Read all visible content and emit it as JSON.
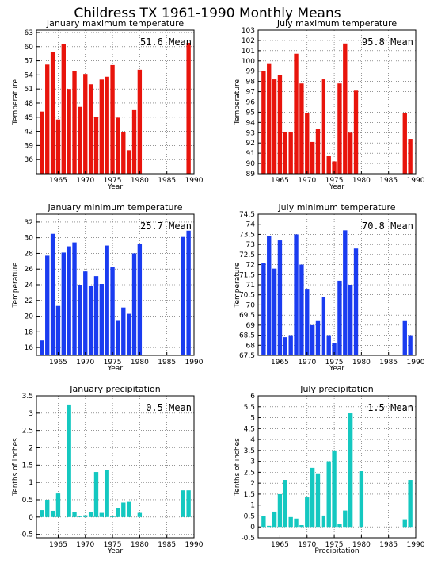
{
  "figure_title": "Childress TX  1961-1990 Monthly Means",
  "chart_data": [
    {
      "type": "bar",
      "title": "January maximum temperature",
      "xlabel": "Year",
      "ylabel": "Temperature",
      "mean_label": "51.6 Mean",
      "color": "#e8140c",
      "xlim": [
        1961,
        1990
      ],
      "ylim": [
        33,
        63.5
      ],
      "yticks": [
        36,
        39,
        42,
        45,
        48,
        51,
        54,
        57,
        60,
        63
      ],
      "xticks": [
        1965,
        1970,
        1975,
        1980,
        1985,
        1990
      ],
      "x": [
        1962,
        1963,
        1964,
        1965,
        1966,
        1967,
        1968,
        1969,
        1970,
        1971,
        1972,
        1973,
        1974,
        1975,
        1976,
        1977,
        1978,
        1979,
        1980,
        1989
      ],
      "values": [
        46.2,
        56.2,
        58.9,
        44.5,
        60.5,
        51.0,
        54.8,
        47.2,
        54.2,
        52.0,
        45.0,
        53.0,
        53.6,
        56.1,
        44.9,
        41.8,
        38.0,
        46.5,
        55.1,
        60.8
      ]
    },
    {
      "type": "bar",
      "title": "July maximum temperature",
      "xlabel": "Year",
      "ylabel": "Temperature",
      "mean_label": "95.8 Mean",
      "color": "#e8140c",
      "xlim": [
        1961,
        1990
      ],
      "ylim": [
        89,
        103
      ],
      "yticks": [
        89,
        90,
        91,
        92,
        93,
        94,
        95,
        96,
        97,
        98,
        99,
        100,
        101,
        102,
        103
      ],
      "xticks": [
        1965,
        1970,
        1975,
        1980,
        1985,
        1990
      ],
      "x": [
        1962,
        1963,
        1964,
        1965,
        1966,
        1967,
        1968,
        1969,
        1970,
        1971,
        1972,
        1973,
        1974,
        1975,
        1976,
        1977,
        1978,
        1979,
        1980,
        1988,
        1989
      ],
      "values": [
        99.0,
        99.7,
        98.2,
        98.6,
        93.1,
        93.1,
        100.7,
        97.8,
        94.9,
        92.1,
        93.4,
        98.2,
        90.7,
        90.2,
        97.8,
        101.7,
        93.0,
        97.1,
        89.0,
        94.9,
        92.4
      ]
    },
    {
      "type": "bar",
      "title": "January minimum temperature",
      "xlabel": "Year",
      "ylabel": "Temperature",
      "mean_label": "25.7 Mean",
      "color": "#1a3cf0",
      "xlim": [
        1961,
        1990
      ],
      "ylim": [
        15,
        33
      ],
      "yticks": [
        16,
        18,
        20,
        22,
        24,
        26,
        28,
        30,
        32
      ],
      "xticks": [
        1965,
        1970,
        1975,
        1980,
        1985,
        1990
      ],
      "x": [
        1962,
        1963,
        1964,
        1965,
        1966,
        1967,
        1968,
        1969,
        1970,
        1971,
        1972,
        1973,
        1974,
        1975,
        1976,
        1977,
        1978,
        1979,
        1980,
        1988,
        1989
      ],
      "values": [
        16.9,
        27.7,
        30.5,
        21.3,
        28.1,
        28.9,
        29.4,
        24.0,
        25.7,
        23.9,
        25.1,
        24.1,
        29.0,
        26.3,
        19.4,
        21.1,
        20.3,
        28.0,
        29.2,
        30.1,
        30.9
      ]
    },
    {
      "type": "bar",
      "title": "July minimum temperature",
      "xlabel": "Year",
      "ylabel": "Temperature",
      "mean_label": "70.8 Mean",
      "color": "#1a3cf0",
      "xlim": [
        1961,
        1990
      ],
      "ylim": [
        67.5,
        74.5
      ],
      "yticks": [
        67.5,
        68,
        68.5,
        69,
        69.5,
        70,
        70.5,
        71,
        71.5,
        72,
        72.5,
        73,
        73.5,
        74,
        74.5
      ],
      "xticks": [
        1965,
        1970,
        1975,
        1980,
        1985,
        1990
      ],
      "x": [
        1962,
        1963,
        1964,
        1965,
        1966,
        1967,
        1968,
        1969,
        1970,
        1971,
        1972,
        1973,
        1974,
        1975,
        1976,
        1977,
        1978,
        1979,
        1980,
        1988,
        1989
      ],
      "values": [
        72.1,
        73.4,
        71.8,
        73.2,
        68.4,
        68.5,
        73.5,
        72.0,
        70.8,
        69.0,
        69.2,
        70.4,
        68.5,
        68.1,
        71.2,
        73.7,
        71.0,
        72.8,
        67.5,
        69.2,
        68.5
      ]
    },
    {
      "type": "bar",
      "title": "January precipitation",
      "xlabel": "Year",
      "ylabel": "Tenths of inches",
      "mean_label": "0.5 Mean",
      "color": "#14c8c0",
      "xlim": [
        1961,
        1990
      ],
      "ylim": [
        -0.6,
        3.5
      ],
      "yticks": [
        -0.5,
        0,
        0.5,
        1,
        1.5,
        2,
        2.5,
        3,
        3.5
      ],
      "xticks": [
        1965,
        1970,
        1975,
        1980,
        1985,
        1990
      ],
      "x": [
        1962,
        1963,
        1964,
        1965,
        1966,
        1967,
        1968,
        1969,
        1970,
        1971,
        1972,
        1973,
        1974,
        1975,
        1976,
        1977,
        1978,
        1979,
        1980,
        1988,
        1989
      ],
      "values": [
        0.2,
        0.5,
        0.18,
        0.68,
        0.0,
        3.25,
        0.15,
        0.02,
        0.05,
        0.15,
        1.3,
        0.12,
        1.35,
        0.02,
        0.25,
        0.42,
        0.44,
        0.0,
        0.12,
        0.77,
        0.77
      ]
    },
    {
      "type": "bar",
      "title": "July precipitation",
      "xlabel": "Precipitation",
      "ylabel": "Tenths of inches",
      "mean_label": "1.5 Mean",
      "color": "#14c8c0",
      "xlim": [
        1961,
        1990
      ],
      "ylim": [
        -0.5,
        6
      ],
      "yticks": [
        -0.5,
        0,
        0.5,
        1,
        1.5,
        2,
        2.5,
        3,
        3.5,
        4,
        4.5,
        5,
        5.5,
        6
      ],
      "xticks": [
        1965,
        1970,
        1975,
        1980,
        1985,
        1990
      ],
      "x": [
        1962,
        1963,
        1964,
        1965,
        1966,
        1967,
        1968,
        1969,
        1970,
        1971,
        1972,
        1973,
        1974,
        1975,
        1976,
        1977,
        1978,
        1979,
        1980,
        1988,
        1989
      ],
      "values": [
        0.5,
        0.05,
        0.7,
        1.5,
        2.15,
        0.45,
        0.38,
        0.08,
        1.35,
        2.7,
        2.45,
        0.52,
        3.0,
        3.5,
        0.12,
        0.75,
        5.2,
        0.0,
        2.55,
        0.35,
        2.15
      ]
    }
  ]
}
